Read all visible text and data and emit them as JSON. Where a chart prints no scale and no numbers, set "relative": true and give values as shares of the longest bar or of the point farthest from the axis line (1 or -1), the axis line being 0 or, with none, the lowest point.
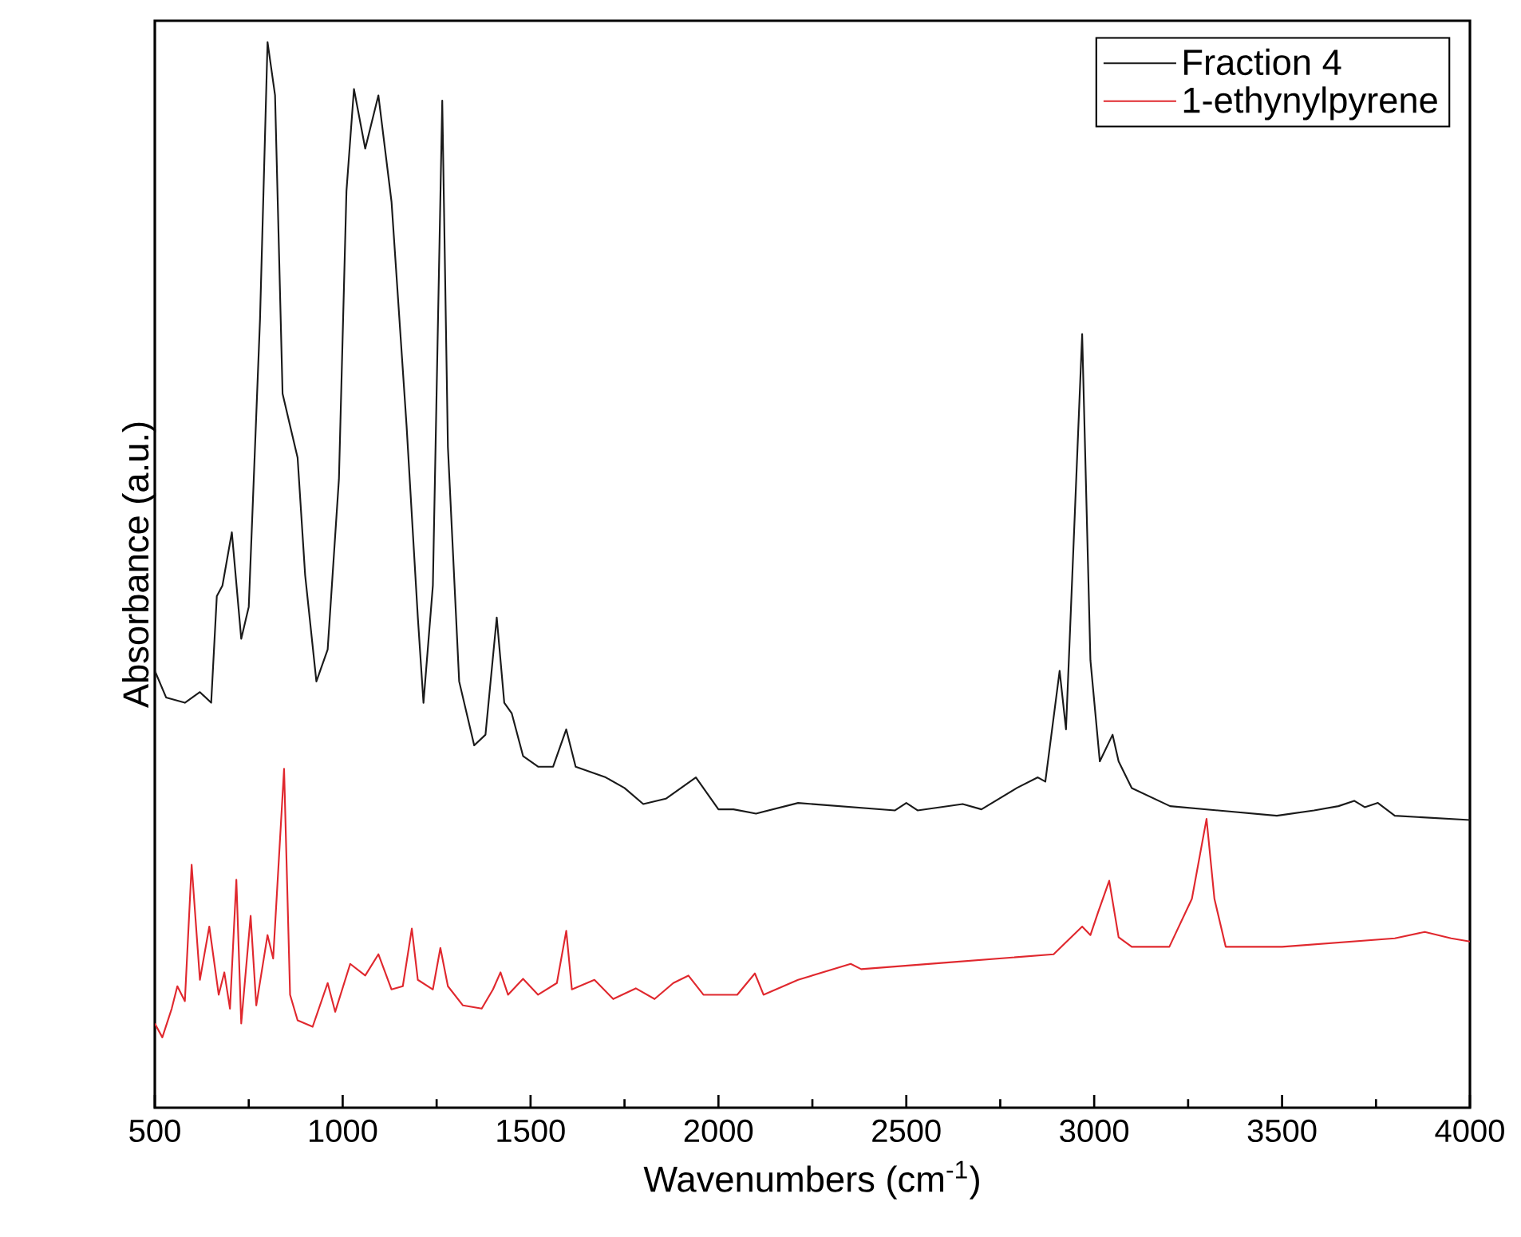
{
  "chart_data": {
    "type": "line",
    "xlabel": "Wavenumbers (cm$^{-1}$)",
    "ylabel": "Absorbance (a.u.)",
    "relative": true,
    "xlim": [
      500,
      4000
    ],
    "xticks": [
      500,
      1000,
      1500,
      2000,
      2500,
      3000,
      3500,
      4000
    ],
    "grid": false,
    "legend": "top right",
    "marker": "none",
    "line_style": "solid",
    "series": [
      {
        "name": "Fraction 4",
        "color": "#1a1a1a",
        "x": [
          500,
          530,
          580,
          620,
          650,
          665,
          680,
          705,
          730,
          750,
          780,
          800,
          820,
          840,
          860,
          880,
          900,
          930,
          960,
          990,
          1010,
          1030,
          1060,
          1095,
          1130,
          1170,
          1200,
          1215,
          1240,
          1265,
          1280,
          1310,
          1350,
          1380,
          1410,
          1430,
          1450,
          1480,
          1520,
          1560,
          1595,
          1620,
          1700,
          1750,
          1800,
          1860,
          1940,
          2000,
          2040,
          2100,
          2212,
          2470,
          2500,
          2530,
          2650,
          2700,
          2794,
          2850,
          2870,
          2908,
          2925,
          2968,
          2990,
          3015,
          3049,
          3065,
          3100,
          3202,
          3486,
          3585,
          3650,
          3692,
          3720,
          3755,
          3800,
          4000
        ],
        "values": [
          0.41,
          0.385,
          0.38,
          0.39,
          0.38,
          0.48,
          0.49,
          0.54,
          0.44,
          0.47,
          0.74,
          1.0,
          0.95,
          0.67,
          0.64,
          0.61,
          0.5,
          0.4,
          0.43,
          0.59,
          0.86,
          0.956,
          0.9,
          0.95,
          0.85,
          0.64,
          0.46,
          0.38,
          0.49,
          0.945,
          0.62,
          0.4,
          0.34,
          0.35,
          0.46,
          0.38,
          0.37,
          0.33,
          0.32,
          0.32,
          0.355,
          0.32,
          0.31,
          0.3,
          0.285,
          0.29,
          0.31,
          0.28,
          0.28,
          0.276,
          0.286,
          0.279,
          0.286,
          0.279,
          0.285,
          0.28,
          0.3,
          0.31,
          0.306,
          0.41,
          0.355,
          0.726,
          0.42,
          0.325,
          0.35,
          0.325,
          0.3,
          0.283,
          0.274,
          0.279,
          0.283,
          0.288,
          0.282,
          0.286,
          0.274,
          0.27
        ]
      },
      {
        "name": "1-ethynylpyrene",
        "color": "#e0282e",
        "x": [
          500,
          520,
          545,
          560,
          580,
          598,
          620,
          645,
          670,
          685,
          700,
          717,
          730,
          755,
          770,
          800,
          815,
          844,
          860,
          880,
          920,
          960,
          980,
          1020,
          1060,
          1095,
          1130,
          1160,
          1184,
          1200,
          1240,
          1260,
          1280,
          1320,
          1370,
          1400,
          1420,
          1440,
          1480,
          1520,
          1570,
          1595,
          1610,
          1670,
          1720,
          1780,
          1830,
          1880,
          1920,
          1960,
          2050,
          2097,
          2120,
          2212,
          2352,
          2380,
          2600,
          2892,
          2968,
          2990,
          3010,
          3040,
          3065,
          3100,
          3200,
          3260,
          3299,
          3320,
          3350,
          3500,
          3800,
          3880,
          3950,
          4000
        ],
        "values": [
          0.079,
          0.066,
          0.093,
          0.114,
          0.1,
          0.228,
          0.12,
          0.17,
          0.106,
          0.127,
          0.093,
          0.214,
          0.079,
          0.18,
          0.096,
          0.162,
          0.14,
          0.318,
          0.106,
          0.082,
          0.076,
          0.117,
          0.09,
          0.135,
          0.124,
          0.144,
          0.111,
          0.114,
          0.168,
          0.12,
          0.111,
          0.15,
          0.114,
          0.096,
          0.093,
          0.111,
          0.127,
          0.106,
          0.121,
          0.106,
          0.117,
          0.166,
          0.111,
          0.12,
          0.102,
          0.112,
          0.102,
          0.117,
          0.124,
          0.106,
          0.106,
          0.126,
          0.106,
          0.12,
          0.135,
          0.13,
          0.136,
          0.144,
          0.17,
          0.162,
          0.183,
          0.213,
          0.16,
          0.151,
          0.151,
          0.196,
          0.271,
          0.196,
          0.151,
          0.151,
          0.159,
          0.165,
          0.159,
          0.156
        ]
      }
    ]
  }
}
